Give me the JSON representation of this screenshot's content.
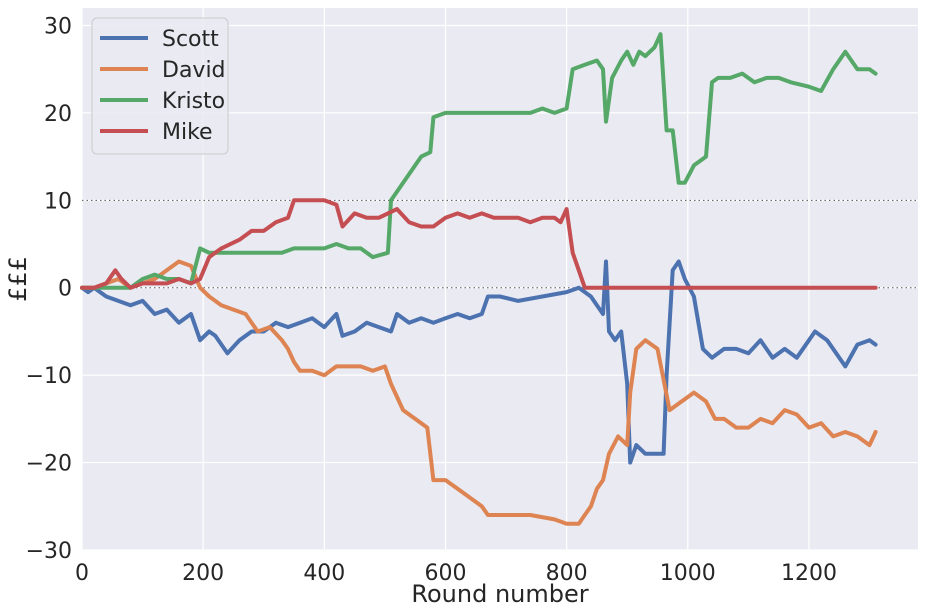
{
  "chart_data": {
    "type": "line",
    "title": "",
    "xlabel": "Round number",
    "ylabel": "£££",
    "xlim": [
      0,
      1380
    ],
    "ylim": [
      -30,
      32
    ],
    "x_ticks": [
      0,
      200,
      400,
      600,
      800,
      1000,
      1200
    ],
    "y_ticks": [
      -30,
      -20,
      -10,
      0,
      10,
      20,
      30
    ],
    "x_tick_labels": [
      "0",
      "200",
      "400",
      "600",
      "800",
      "1000",
      "1200"
    ],
    "y_tick_labels": [
      "−30",
      "−20",
      "−10",
      "0",
      "10",
      "20",
      "30"
    ],
    "reference_lines": [
      0,
      10
    ],
    "grid": true,
    "legend_position": "top-left",
    "series": [
      {
        "name": "Scott",
        "color": "#4c72b0",
        "points": [
          [
            0,
            0
          ],
          [
            10,
            -0.5
          ],
          [
            20,
            0
          ],
          [
            40,
            -1
          ],
          [
            60,
            -1.5
          ],
          [
            80,
            -2
          ],
          [
            100,
            -1.5
          ],
          [
            120,
            -3
          ],
          [
            140,
            -2.5
          ],
          [
            160,
            -4
          ],
          [
            180,
            -3
          ],
          [
            195,
            -6
          ],
          [
            210,
            -5
          ],
          [
            220,
            -5.5
          ],
          [
            240,
            -7.5
          ],
          [
            260,
            -6
          ],
          [
            280,
            -5
          ],
          [
            300,
            -5
          ],
          [
            320,
            -4
          ],
          [
            340,
            -4.5
          ],
          [
            360,
            -4
          ],
          [
            380,
            -3.5
          ],
          [
            400,
            -4.5
          ],
          [
            420,
            -3
          ],
          [
            430,
            -5.5
          ],
          [
            450,
            -5
          ],
          [
            470,
            -4
          ],
          [
            490,
            -4.5
          ],
          [
            510,
            -5
          ],
          [
            520,
            -3
          ],
          [
            540,
            -4
          ],
          [
            560,
            -3.5
          ],
          [
            580,
            -4
          ],
          [
            600,
            -3.5
          ],
          [
            620,
            -3
          ],
          [
            640,
            -3.5
          ],
          [
            660,
            -3
          ],
          [
            670,
            -1
          ],
          [
            690,
            -1
          ],
          [
            720,
            -1.5
          ],
          [
            760,
            -1
          ],
          [
            800,
            -0.5
          ],
          [
            820,
            0
          ],
          [
            840,
            -1
          ],
          [
            850,
            -2
          ],
          [
            860,
            -3
          ],
          [
            865,
            3
          ],
          [
            870,
            -5
          ],
          [
            880,
            -6
          ],
          [
            890,
            -5
          ],
          [
            900,
            -11
          ],
          [
            905,
            -20
          ],
          [
            915,
            -18
          ],
          [
            930,
            -19
          ],
          [
            950,
            -19
          ],
          [
            960,
            -19
          ],
          [
            965,
            -10
          ],
          [
            975,
            2
          ],
          [
            985,
            3
          ],
          [
            995,
            1
          ],
          [
            1010,
            -1
          ],
          [
            1025,
            -7
          ],
          [
            1040,
            -8
          ],
          [
            1060,
            -7
          ],
          [
            1080,
            -7
          ],
          [
            1100,
            -7.5
          ],
          [
            1120,
            -6
          ],
          [
            1140,
            -8
          ],
          [
            1160,
            -7
          ],
          [
            1180,
            -8
          ],
          [
            1200,
            -6
          ],
          [
            1210,
            -5
          ],
          [
            1230,
            -6
          ],
          [
            1260,
            -9
          ],
          [
            1280,
            -6.5
          ],
          [
            1300,
            -6
          ],
          [
            1310,
            -6.5
          ]
        ]
      },
      {
        "name": "David",
        "color": "#dd8452",
        "points": [
          [
            0,
            0
          ],
          [
            20,
            0
          ],
          [
            40,
            0.5
          ],
          [
            60,
            1
          ],
          [
            80,
            0
          ],
          [
            100,
            0.5
          ],
          [
            120,
            1
          ],
          [
            140,
            2
          ],
          [
            160,
            3
          ],
          [
            180,
            2.5
          ],
          [
            195,
            0
          ],
          [
            210,
            -1
          ],
          [
            230,
            -2
          ],
          [
            250,
            -2.5
          ],
          [
            270,
            -3
          ],
          [
            290,
            -5
          ],
          [
            310,
            -4.5
          ],
          [
            330,
            -6
          ],
          [
            340,
            -7
          ],
          [
            350,
            -8.5
          ],
          [
            360,
            -9.5
          ],
          [
            380,
            -9.5
          ],
          [
            400,
            -10
          ],
          [
            420,
            -9
          ],
          [
            440,
            -9
          ],
          [
            460,
            -9
          ],
          [
            480,
            -9.5
          ],
          [
            500,
            -9
          ],
          [
            510,
            -11
          ],
          [
            530,
            -14
          ],
          [
            550,
            -15
          ],
          [
            570,
            -16
          ],
          [
            580,
            -22
          ],
          [
            600,
            -22
          ],
          [
            620,
            -23
          ],
          [
            640,
            -24
          ],
          [
            660,
            -25
          ],
          [
            670,
            -26
          ],
          [
            700,
            -26
          ],
          [
            740,
            -26
          ],
          [
            780,
            -26.5
          ],
          [
            800,
            -27
          ],
          [
            820,
            -27
          ],
          [
            830,
            -26
          ],
          [
            840,
            -25
          ],
          [
            850,
            -23
          ],
          [
            860,
            -22
          ],
          [
            870,
            -19
          ],
          [
            885,
            -17
          ],
          [
            900,
            -18
          ],
          [
            905,
            -12
          ],
          [
            915,
            -7
          ],
          [
            930,
            -6
          ],
          [
            950,
            -7
          ],
          [
            970,
            -14
          ],
          [
            990,
            -13
          ],
          [
            1010,
            -12
          ],
          [
            1030,
            -13
          ],
          [
            1045,
            -15
          ],
          [
            1060,
            -15
          ],
          [
            1080,
            -16
          ],
          [
            1100,
            -16
          ],
          [
            1120,
            -15
          ],
          [
            1140,
            -15.5
          ],
          [
            1160,
            -14
          ],
          [
            1180,
            -14.5
          ],
          [
            1200,
            -16
          ],
          [
            1220,
            -15.5
          ],
          [
            1240,
            -17
          ],
          [
            1260,
            -16.5
          ],
          [
            1280,
            -17
          ],
          [
            1300,
            -18
          ],
          [
            1310,
            -16.5
          ]
        ]
      },
      {
        "name": "Kristo",
        "color": "#55a868",
        "points": [
          [
            0,
            0
          ],
          [
            20,
            0
          ],
          [
            40,
            0
          ],
          [
            80,
            0
          ],
          [
            100,
            1
          ],
          [
            120,
            1.5
          ],
          [
            140,
            1
          ],
          [
            160,
            1
          ],
          [
            180,
            0.5
          ],
          [
            195,
            4.5
          ],
          [
            210,
            4
          ],
          [
            230,
            4
          ],
          [
            260,
            4
          ],
          [
            300,
            4
          ],
          [
            330,
            4
          ],
          [
            350,
            4.5
          ],
          [
            370,
            4.5
          ],
          [
            400,
            4.5
          ],
          [
            420,
            5
          ],
          [
            440,
            4.5
          ],
          [
            460,
            4.5
          ],
          [
            480,
            3.5
          ],
          [
            505,
            4
          ],
          [
            510,
            10
          ],
          [
            520,
            11
          ],
          [
            540,
            13
          ],
          [
            560,
            15
          ],
          [
            575,
            15.5
          ],
          [
            580,
            19.5
          ],
          [
            600,
            20
          ],
          [
            620,
            20
          ],
          [
            660,
            20
          ],
          [
            700,
            20
          ],
          [
            740,
            20
          ],
          [
            760,
            20.5
          ],
          [
            780,
            20
          ],
          [
            800,
            20.5
          ],
          [
            810,
            25
          ],
          [
            830,
            25.5
          ],
          [
            850,
            26
          ],
          [
            860,
            25
          ],
          [
            865,
            19
          ],
          [
            875,
            24
          ],
          [
            890,
            26
          ],
          [
            900,
            27
          ],
          [
            910,
            25.5
          ],
          [
            920,
            27
          ],
          [
            930,
            26.5
          ],
          [
            945,
            27.5
          ],
          [
            955,
            29
          ],
          [
            965,
            18
          ],
          [
            975,
            18
          ],
          [
            985,
            12
          ],
          [
            995,
            12
          ],
          [
            1010,
            14
          ],
          [
            1030,
            15
          ],
          [
            1040,
            23.5
          ],
          [
            1050,
            24
          ],
          [
            1070,
            24
          ],
          [
            1090,
            24.5
          ],
          [
            1110,
            23.5
          ],
          [
            1130,
            24
          ],
          [
            1150,
            24
          ],
          [
            1170,
            23.5
          ],
          [
            1200,
            23
          ],
          [
            1220,
            22.5
          ],
          [
            1240,
            25
          ],
          [
            1260,
            27
          ],
          [
            1280,
            25
          ],
          [
            1300,
            25
          ],
          [
            1310,
            24.5
          ]
        ]
      },
      {
        "name": "Mike",
        "color": "#c44e52",
        "points": [
          [
            0,
            0
          ],
          [
            20,
            0
          ],
          [
            40,
            0.5
          ],
          [
            55,
            2
          ],
          [
            65,
            1
          ],
          [
            80,
            0
          ],
          [
            100,
            0.5
          ],
          [
            120,
            0.5
          ],
          [
            140,
            0.5
          ],
          [
            160,
            1
          ],
          [
            180,
            0.5
          ],
          [
            195,
            1
          ],
          [
            210,
            3.5
          ],
          [
            230,
            4.5
          ],
          [
            260,
            5.5
          ],
          [
            280,
            6.5
          ],
          [
            300,
            6.5
          ],
          [
            320,
            7.5
          ],
          [
            340,
            8
          ],
          [
            350,
            10
          ],
          [
            380,
            10
          ],
          [
            400,
            10
          ],
          [
            420,
            9.5
          ],
          [
            430,
            7
          ],
          [
            450,
            8.5
          ],
          [
            470,
            8
          ],
          [
            490,
            8
          ],
          [
            505,
            8.5
          ],
          [
            520,
            9
          ],
          [
            540,
            7.5
          ],
          [
            560,
            7
          ],
          [
            580,
            7
          ],
          [
            600,
            8
          ],
          [
            620,
            8.5
          ],
          [
            640,
            8
          ],
          [
            660,
            8.5
          ],
          [
            680,
            8
          ],
          [
            700,
            8
          ],
          [
            720,
            8
          ],
          [
            740,
            7.5
          ],
          [
            760,
            8
          ],
          [
            780,
            8
          ],
          [
            790,
            7.5
          ],
          [
            800,
            9
          ],
          [
            810,
            4
          ],
          [
            820,
            2
          ],
          [
            830,
            0
          ],
          [
            840,
            0
          ],
          [
            900,
            0
          ],
          [
            1000,
            0
          ],
          [
            1100,
            0
          ],
          [
            1200,
            0
          ],
          [
            1310,
            0
          ]
        ]
      }
    ]
  }
}
